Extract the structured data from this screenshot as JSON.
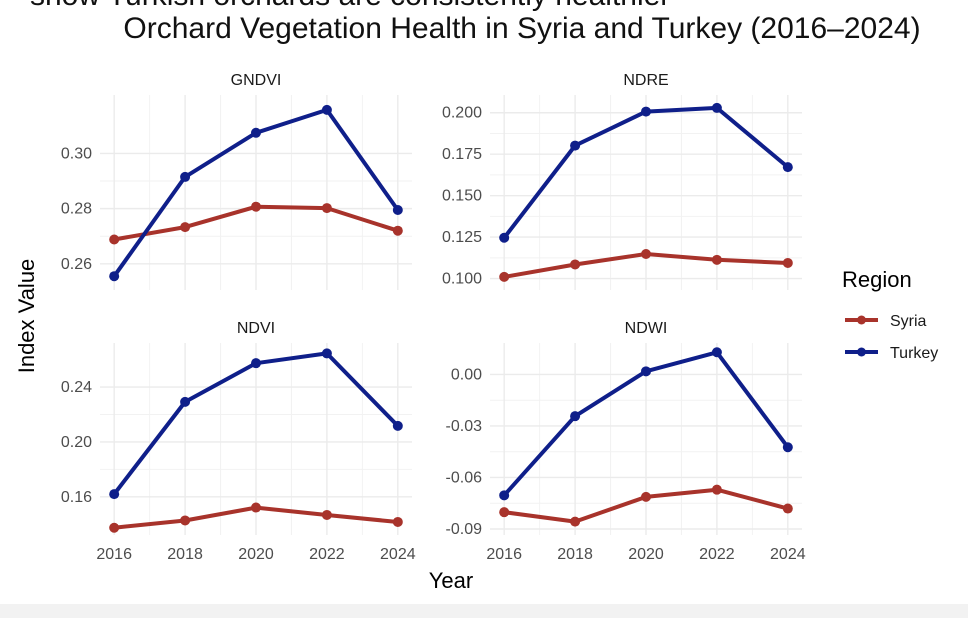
{
  "title": {
    "line1": "show Turkish orchards are consistently healthier",
    "line2": "Orchard Vegetation Health in Syria and Turkey (2016–2024)"
  },
  "legend": {
    "title": "Region",
    "items": [
      {
        "name": "Syria",
        "color": "#a8332b"
      },
      {
        "name": "Turkey",
        "color": "#0f1f8a"
      }
    ]
  },
  "chart_data": {
    "type": "line",
    "xlabel": "Year",
    "ylabel": "Index Value",
    "legend_position": "right",
    "grid": true,
    "x": [
      2016,
      2018,
      2020,
      2022,
      2024
    ],
    "x_ticks": [
      "2016",
      "2018",
      "2020",
      "2022",
      "2024"
    ],
    "facets": [
      {
        "name": "GNDVI",
        "ylim": [
          0.2505,
          0.3212
        ],
        "y_ticks": [
          0.26,
          0.28,
          0.3
        ],
        "y_tick_labels": [
          "0.26",
          "0.28",
          "0.30"
        ],
        "series": [
          {
            "name": "Syria",
            "values": [
              0.2688,
              0.2733,
              0.2807,
              0.2802,
              0.272
            ]
          },
          {
            "name": "Turkey",
            "values": [
              0.2555,
              0.2915,
              0.3075,
              0.3158,
              0.2795
            ]
          }
        ]
      },
      {
        "name": "NDRE",
        "ylim": [
          0.0931,
          0.2107
        ],
        "y_ticks": [
          0.1,
          0.125,
          0.15,
          0.175,
          0.2
        ],
        "y_tick_labels": [
          "0.100",
          "0.125",
          "0.150",
          "0.175",
          "0.200"
        ],
        "series": [
          {
            "name": "Syria",
            "values": [
              0.101,
              0.1085,
              0.1148,
              0.1113,
              0.1094
            ]
          },
          {
            "name": "Turkey",
            "values": [
              0.1246,
              0.1802,
              0.2007,
              0.2029,
              0.1672
            ]
          }
        ]
      },
      {
        "name": "NDVI",
        "ylim": [
          0.1322,
          0.2721
        ],
        "y_ticks": [
          0.16,
          0.2,
          0.24
        ],
        "y_tick_labels": [
          "0.16",
          "0.20",
          "0.24"
        ],
        "series": [
          {
            "name": "Syria",
            "values": [
              0.1375,
              0.1428,
              0.1522,
              0.1468,
              0.1417
            ]
          },
          {
            "name": "Turkey",
            "values": [
              0.162,
              0.2292,
              0.2574,
              0.2645,
              0.2117
            ]
          }
        ]
      },
      {
        "name": "NDWI",
        "ylim": [
          -0.0935,
          0.0183
        ],
        "y_ticks": [
          -0.09,
          -0.06,
          -0.03,
          0.0
        ],
        "y_tick_labels": [
          "-0.09",
          "-0.06",
          "-0.03",
          "0.00"
        ],
        "series": [
          {
            "name": "Syria",
            "values": [
              -0.0802,
              -0.0857,
              -0.0713,
              -0.0671,
              -0.0781
            ]
          },
          {
            "name": "Turkey",
            "values": [
              -0.0704,
              -0.0243,
              0.0018,
              0.0129,
              -0.0424
            ]
          }
        ]
      }
    ]
  }
}
